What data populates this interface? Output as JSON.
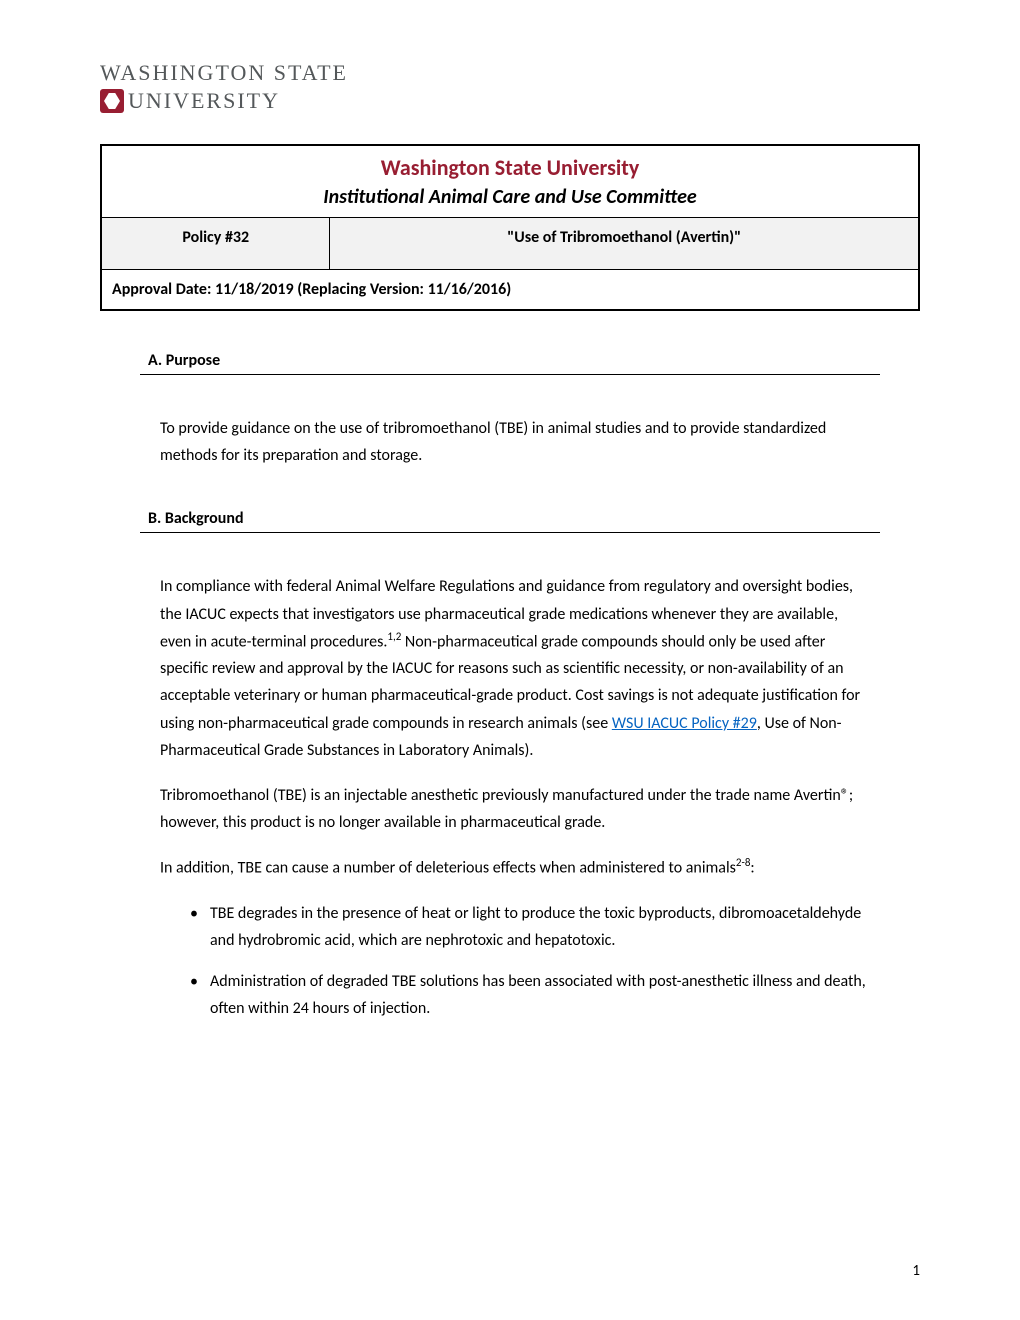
{
  "logo": {
    "text_top": "WASHINGTON STATE",
    "text_bottom": "UNIVERSITY",
    "icon_name": "cougar-logo",
    "text_color": "#54585a",
    "accent_color": "#981e32"
  },
  "header": {
    "university": "Washington State University",
    "committee": "Institutional Animal Care and Use Committee",
    "policy_number": "Policy #32",
    "policy_title": "\"Use of Tribromoethanol (Avertin)\"",
    "approval_date": "Approval Date: 11/18/2019 (Replacing Version: 11/16/2016)",
    "university_color": "#981e32",
    "background_color": "#f2f2f2",
    "border_color": "#000000"
  },
  "sections": {
    "purpose": {
      "label": "A.   Purpose",
      "body": "To provide guidance on the use of tribromoethanol (TBE) in animal studies and to provide standardized methods for its preparation and storage."
    },
    "background": {
      "label": "B.   Background",
      "para1_pre": "In compliance with federal Animal Welfare Regulations and guidance from regulatory and oversight bodies, the IACUC expects that investigators use pharmaceutical grade medications whenever they are available, even in acute-terminal procedures.",
      "para1_sup": "1,2",
      "para1_post": "  Non-pharmaceutical grade compounds should only be used after specific review and approval by the IACUC for reasons such as scientific necessity, or non-availability of an acceptable veterinary or human pharmaceutical-grade product. Cost savings is not adequate justification for using non-pharmaceutical grade compounds in research animals (see ",
      "link_text": "WSU IACUC Policy #29",
      "para1_tail": ", Use of Non-Pharmaceutical Grade Substances in Laboratory Animals).",
      "para2": "Tribromoethanol (TBE) is an injectable anesthetic previously manufactured under the trade name Avertin®; however, this product is no longer available in pharmaceutical grade.",
      "para3_pre": "In addition, TBE can cause a number of deleterious effects when administered to animals",
      "para3_sup": "2-8",
      "para3_post": ":",
      "bullets": [
        "TBE degrades in the presence of heat or light to produce the toxic byproducts, dibromoacetaldehyde and hydrobromic acid, which are nephrotoxic and hepatotoxic.",
        "Administration of degraded TBE solutions has been associated with post-anesthetic illness and death, often within 24 hours of injection."
      ]
    }
  },
  "link_color": "#0563c1",
  "page_number": "1",
  "fonts": {
    "body_family": "Calibri",
    "body_size_pt": 12,
    "header_title_size_pt": 16
  }
}
